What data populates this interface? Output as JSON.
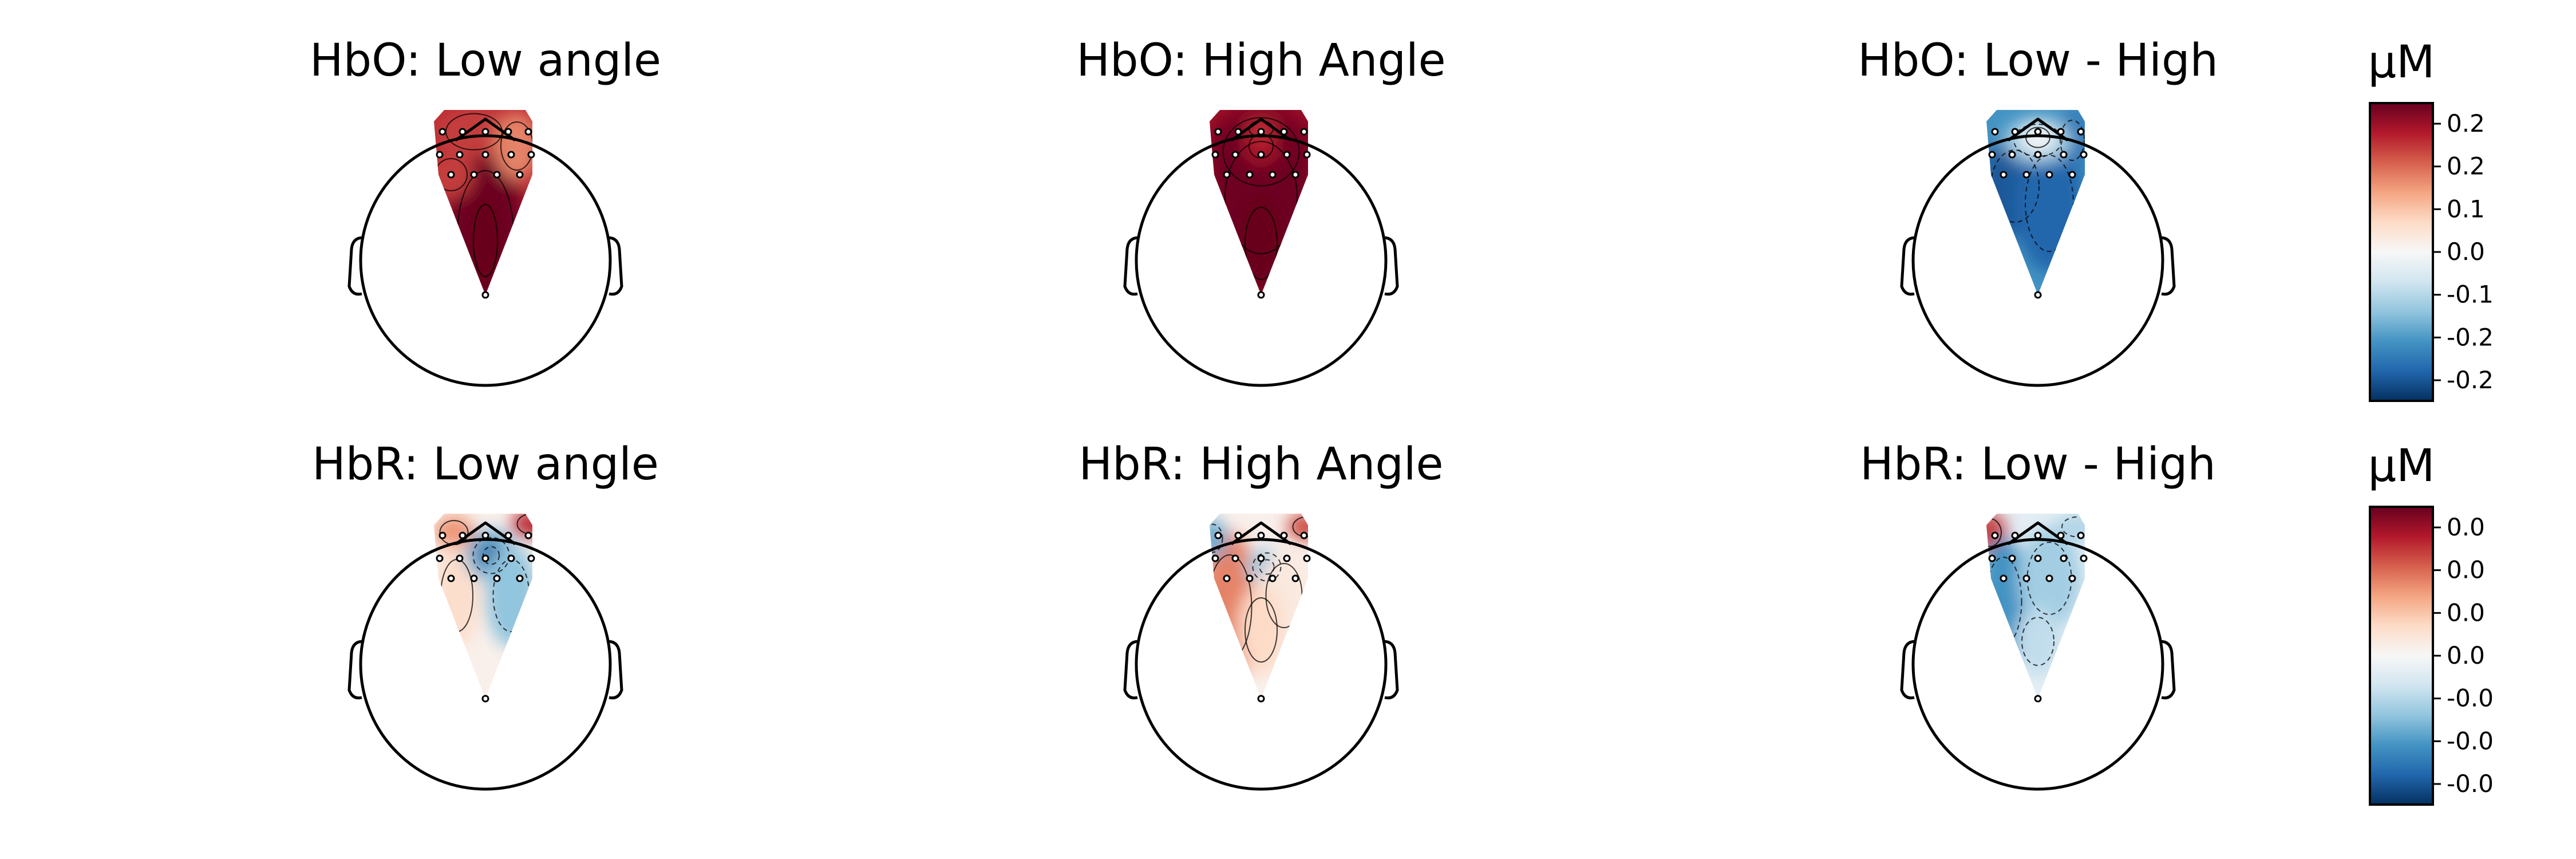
{
  "figure": {
    "rows": [
      "HbO",
      "HbR"
    ]
  },
  "chart_data": {
    "type": "heatmap",
    "panels": [
      {
        "row": 0,
        "col": 0,
        "title": "HbO: Low angle",
        "pattern": "hbo_low"
      },
      {
        "row": 0,
        "col": 1,
        "title": "HbO: High Angle",
        "pattern": "hbo_high"
      },
      {
        "row": 0,
        "col": 2,
        "title": "HbO: Low - High",
        "pattern": "hbo_diff"
      },
      {
        "row": 1,
        "col": 0,
        "title": "HbR: Low angle",
        "pattern": "hbr_low"
      },
      {
        "row": 1,
        "col": 1,
        "title": "HbR: High Angle",
        "pattern": "hbr_high"
      },
      {
        "row": 1,
        "col": 2,
        "title": "HbR: Low - High",
        "pattern": "hbr_diff"
      }
    ],
    "colorbars": [
      {
        "row": 0,
        "unit": "µM",
        "tick_labels": [
          "0.2",
          "0.2",
          "0.1",
          "0.0",
          "-0.1",
          "-0.2",
          "-0.2"
        ],
        "range": [
          -0.25,
          0.25
        ]
      },
      {
        "row": 1,
        "unit": "µM",
        "tick_labels": [
          "0.0",
          "0.0",
          "0.0",
          "0.0",
          "-0.0",
          "-0.0",
          "-0.0"
        ],
        "range": [
          -0.03,
          0.03
        ]
      }
    ],
    "colormap": [
      "#053061",
      "#2166ac",
      "#4393c3",
      "#92c5de",
      "#d1e5f0",
      "#f7f7f7",
      "#fddbc7",
      "#f4a582",
      "#d6604d",
      "#b2182b",
      "#67001f"
    ]
  }
}
